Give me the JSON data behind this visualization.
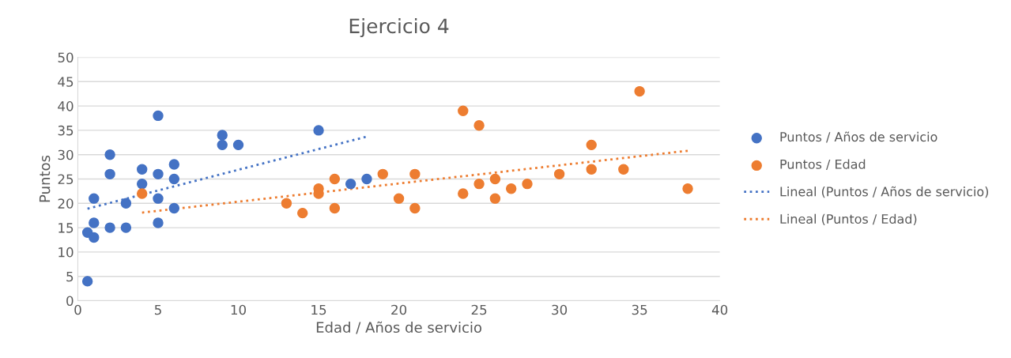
{
  "chart_data": {
    "type": "scatter",
    "title": "Ejercicio 4",
    "xlabel": "Edad / Años de servicio",
    "ylabel": "Puntos",
    "xlim": [
      0,
      40
    ],
    "xticks": [
      0,
      5,
      10,
      15,
      20,
      25,
      30,
      35,
      40
    ],
    "ylim": [
      0,
      50
    ],
    "yticks": [
      0,
      5,
      10,
      15,
      20,
      25,
      30,
      35,
      40,
      45,
      50
    ],
    "grid": "y",
    "legend": "right",
    "marker": "circle",
    "series": [
      {
        "name": "Puntos / Años de servicio",
        "color": "#4472c4",
        "x": [
          0.6,
          0.6,
          1,
          1,
          1,
          2,
          2,
          2,
          3,
          3,
          4,
          4,
          5,
          5,
          5,
          5,
          6,
          6,
          6,
          9,
          9,
          10,
          15,
          17,
          18
        ],
        "values": [
          4,
          14,
          13,
          16,
          21,
          30,
          26,
          15,
          20,
          15,
          27,
          24,
          38,
          26,
          21,
          16,
          28,
          25,
          19,
          34,
          32,
          32,
          35,
          24,
          25
        ]
      },
      {
        "name": "Puntos / Edad",
        "color": "#ed7d31",
        "x": [
          4,
          13,
          14,
          15,
          15,
          16,
          16,
          19,
          20,
          21,
          21,
          24,
          24,
          25,
          25,
          26,
          26,
          27,
          28,
          30,
          32,
          32,
          34,
          35,
          38
        ],
        "values": [
          22,
          20,
          18,
          23,
          22,
          25,
          19,
          26,
          21,
          26,
          19,
          39,
          22,
          36,
          24,
          25,
          21,
          23,
          24,
          26,
          32,
          27,
          27,
          43,
          23
        ]
      },
      {
        "name": "Lineal (Puntos / Años de servicio)",
        "type": "line",
        "line_style": "dotted",
        "marker": "none",
        "color": "#4472c4",
        "x": [
          0.6,
          18
        ],
        "values": [
          18.9,
          33.7
        ]
      },
      {
        "name": "Lineal (Puntos / Edad)",
        "type": "line",
        "line_style": "dotted",
        "marker": "none",
        "color": "#ed7d31",
        "x": [
          4,
          38
        ],
        "values": [
          18.1,
          30.8
        ]
      }
    ]
  }
}
